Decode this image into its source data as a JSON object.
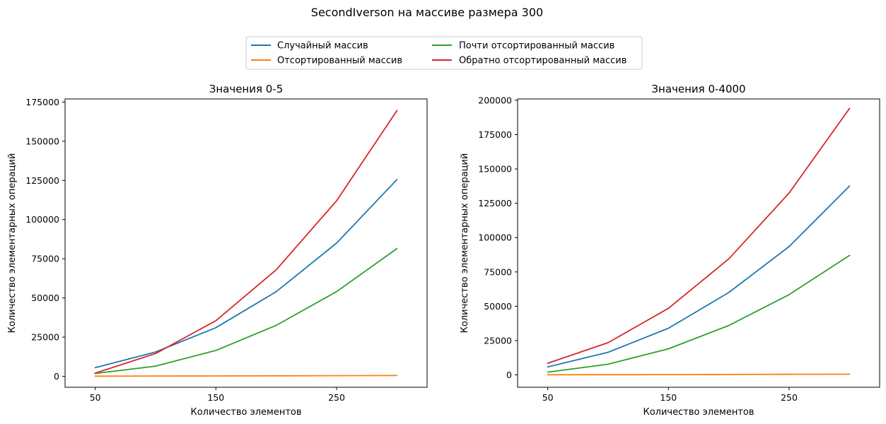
{
  "figure": {
    "suptitle": "SecondIverson на массиве размера 300"
  },
  "legend": {
    "placement": "top-center",
    "entries": [
      {
        "label": "Случайный массив",
        "color": "#1f77b4"
      },
      {
        "label": "Отсортированный массив",
        "color": "#ff7f0e"
      },
      {
        "label": "Почти отсортированный массив",
        "color": "#2ca02c"
      },
      {
        "label": "Обратно отсортированный массив",
        "color": "#d62728"
      }
    ]
  },
  "chart_data": [
    {
      "type": "line",
      "title": "Значения 0-5",
      "xlabel": "Количество элементов",
      "ylabel": "Количество элементарных операций",
      "x": [
        50,
        100,
        150,
        200,
        250,
        300
      ],
      "xticks": [
        50,
        150,
        250
      ],
      "xtick_labels": [
        "50",
        "150",
        "250"
      ],
      "xlim": [
        25,
        325
      ],
      "yticks": [
        0,
        25000,
        50000,
        75000,
        100000,
        125000,
        150000,
        175000
      ],
      "ytick_labels": [
        "0",
        "25000",
        "50000",
        "75000",
        "100000",
        "125000",
        "150000",
        "175000"
      ],
      "ylim": [
        -7000,
        177000
      ],
      "grid": false,
      "series": [
        {
          "name": "Случайный массив",
          "color": "#1f77b4",
          "values": [
            5500,
            15500,
            31000,
            54000,
            85000,
            125500
          ]
        },
        {
          "name": "Отсортированный массив",
          "color": "#ff7f0e",
          "values": [
            100,
            150,
            200,
            300,
            400,
            500
          ]
        },
        {
          "name": "Почти отсортированный массив",
          "color": "#2ca02c",
          "values": [
            1800,
            6500,
            16500,
            32500,
            54000,
            81500
          ]
        },
        {
          "name": "Обратно отсортированный массив",
          "color": "#d62728",
          "values": [
            2000,
            14500,
            35500,
            68000,
            112000,
            169500
          ]
        }
      ]
    },
    {
      "type": "line",
      "title": "Значения 0-4000",
      "xlabel": "Количество элементов",
      "ylabel": "Количество элементарных операций",
      "x": [
        50,
        100,
        150,
        200,
        250,
        300
      ],
      "xticks": [
        50,
        150,
        250
      ],
      "xtick_labels": [
        "50",
        "150",
        "250"
      ],
      "xlim": [
        25,
        325
      ],
      "yticks": [
        0,
        25000,
        50000,
        75000,
        100000,
        125000,
        150000,
        175000,
        200000
      ],
      "ytick_labels": [
        "0",
        "25000",
        "50000",
        "75000",
        "100000",
        "125000",
        "150000",
        "175000",
        "200000"
      ],
      "ylim": [
        -9000,
        201000
      ],
      "grid": false,
      "series": [
        {
          "name": "Случайный массив",
          "color": "#1f77b4",
          "values": [
            5800,
            16500,
            34000,
            60000,
            93500,
            137500
          ]
        },
        {
          "name": "Отсортированный массив",
          "color": "#ff7f0e",
          "values": [
            100,
            150,
            200,
            300,
            400,
            500
          ]
        },
        {
          "name": "Почти отсортированный массив",
          "color": "#2ca02c",
          "values": [
            2000,
            7800,
            19000,
            36000,
            58500,
            87000
          ]
        },
        {
          "name": "Обратно отсортированный массив",
          "color": "#d62728",
          "values": [
            8500,
            23500,
            48500,
            84500,
            132500,
            194000
          ]
        }
      ]
    }
  ]
}
